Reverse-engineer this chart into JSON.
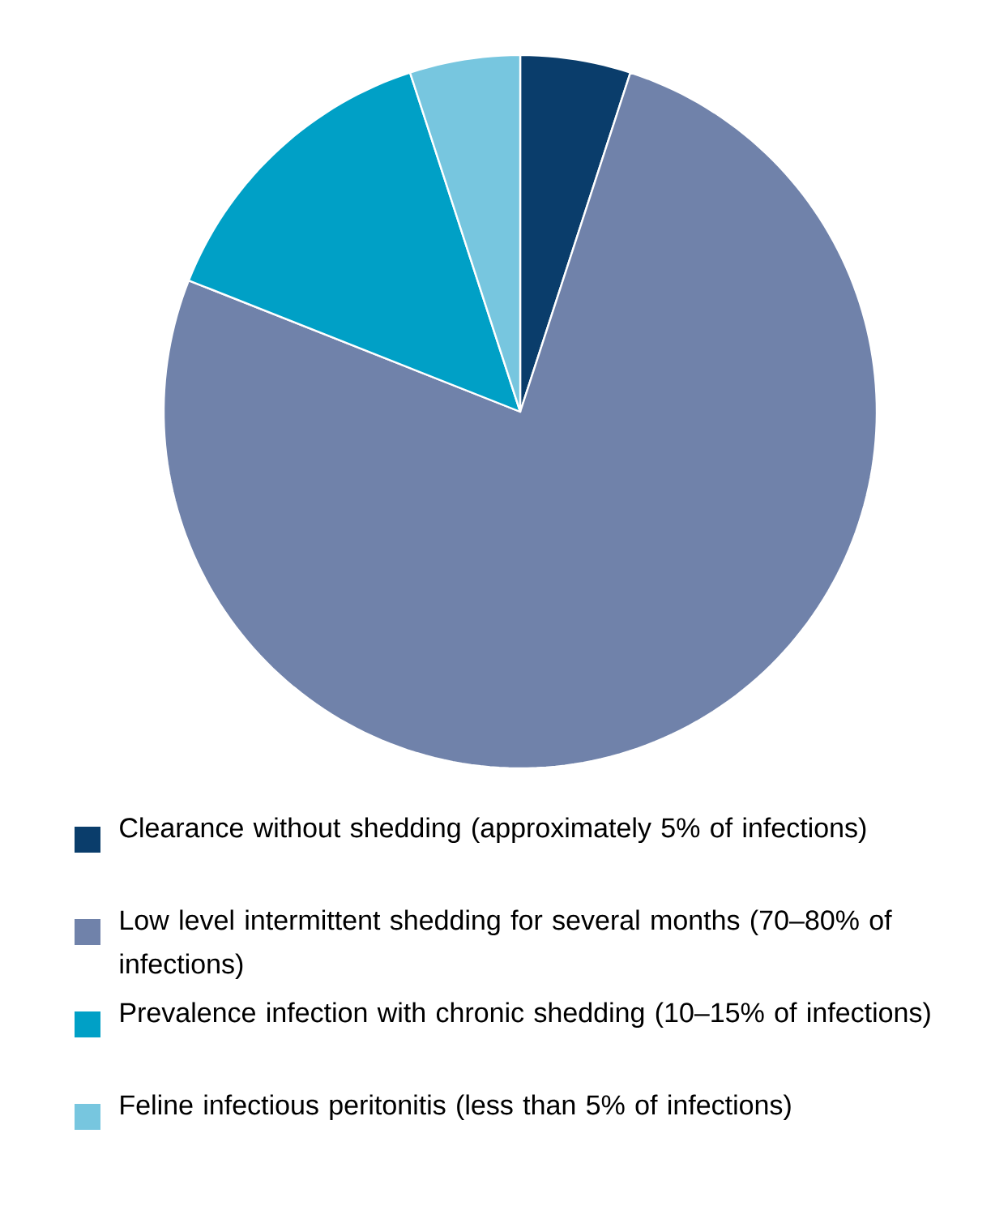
{
  "chart_data": {
    "type": "pie",
    "categories": [
      "Clearance without shedding (approximately 5% of infections)",
      "Low level intermittent shedding for several months (70–80% of infections)",
      "Prevalence infection with chronic shedding (10–15% of infections)",
      "Feline infectious peritonitis (less than 5% of infections)"
    ],
    "values": [
      5,
      76,
      14,
      5
    ],
    "colors": [
      "#0a3d6b",
      "#7082aa",
      "#00a0c6",
      "#77c6df"
    ],
    "legend": "bottom"
  }
}
